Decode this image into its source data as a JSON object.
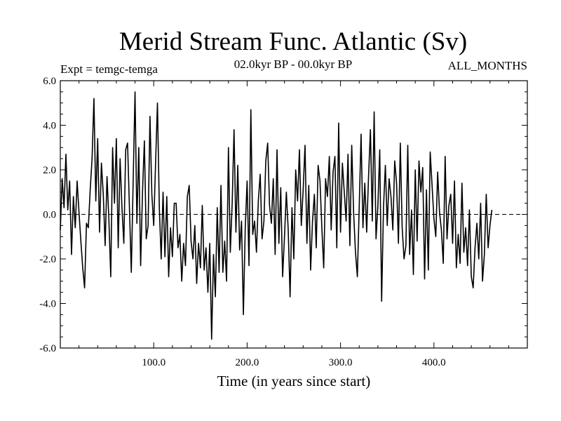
{
  "chart_data": {
    "type": "line",
    "title": "Merid Stream Func. Atlantic (Sv)",
    "subtitle": "02.0kyr BP - 00.0kyr BP",
    "experiment": "Expt = temgc-temga",
    "months": "ALL_MONTHS",
    "xlabel": "Time (in years since start)",
    "ylabel": "",
    "xlim": [
      0,
      500
    ],
    "ylim": [
      -6,
      6
    ],
    "xticks": [
      100,
      200,
      300,
      400
    ],
    "xtick_labels": [
      "100.0",
      "200.0",
      "300.0",
      "400.0"
    ],
    "yticks": [
      -6,
      -4,
      -2,
      0,
      2,
      4,
      6
    ],
    "ytick_labels": [
      "-6.0",
      "-4.0",
      "-2.0",
      "0.0",
      "2.0",
      "4.0",
      "6.0"
    ],
    "zero_line": "dashed",
    "series": [
      {
        "name": "Merid Stream Func. Atlantic",
        "color": "#000000",
        "x_start": 0,
        "x_step": 2,
        "values": [
          -0.7,
          1.6,
          0.3,
          2.7,
          0.2,
          1.5,
          -1.8,
          0.8,
          -0.6,
          1.5,
          0.1,
          -1.2,
          -2.4,
          -3.3,
          -0.4,
          -0.6,
          1.1,
          2.5,
          5.2,
          0.6,
          3.4,
          -0.8,
          2.3,
          0.9,
          -1.4,
          1.7,
          -0.2,
          -2.8,
          3.0,
          0.5,
          3.4,
          -1.5,
          2.5,
          0.3,
          -1.3,
          2.9,
          3.2,
          0.3,
          -2.6,
          1.5,
          5.5,
          -0.4,
          3.0,
          -2.3,
          1.0,
          3.3,
          -1.1,
          -0.5,
          4.4,
          0.9,
          -0.5,
          2.3,
          5.0,
          0.3,
          -2.0,
          1.0,
          -1.9,
          0.8,
          -2.8,
          -0.6,
          -1.9,
          0.5,
          0.5,
          -1.5,
          -0.9,
          -3.0,
          -1.3,
          -2.3,
          0.8,
          1.3,
          -1.2,
          -2.0,
          -0.5,
          -3.1,
          -1.3,
          -2.4,
          0.4,
          -2.5,
          -1.5,
          -3.5,
          -1.3,
          -5.6,
          -1.8,
          -3.7,
          0.3,
          -2.6,
          1.3,
          -2.6,
          -1.2,
          -3.0,
          3.0,
          -1.7,
          0.5,
          3.8,
          -0.8,
          2.2,
          -1.6,
          -0.3,
          -4.5,
          -0.6,
          1.5,
          -2.3,
          4.7,
          -0.9,
          -0.3,
          -1.7,
          0.6,
          1.8,
          -1.1,
          -0.3,
          2.4,
          3.2,
          0.4,
          -0.4,
          1.6,
          -1.8,
          2.9,
          -1.3,
          1.2,
          -2.8,
          -1.0,
          1.0,
          -0.7,
          -3.7,
          0.3,
          -2.0,
          2.0,
          0.6,
          2.9,
          -0.5,
          1.1,
          3.1,
          -1.3,
          1.3,
          -2.5,
          -0.3,
          0.9,
          -1.5,
          2.2,
          1.5,
          -0.6,
          -2.4,
          1.6,
          0.8,
          2.6,
          -0.7,
          1.9,
          2.6,
          -1.5,
          4.1,
          -0.8,
          2.3,
          1.0,
          -0.3,
          2.7,
          -1.4,
          3.1,
          0.1,
          -1.7,
          -2.8,
          0.3,
          3.6,
          -0.6,
          1.4,
          -0.8,
          1.7,
          3.8,
          -0.3,
          4.6,
          -1.1,
          0.4,
          2.9,
          -3.9,
          0.3,
          2.2,
          -0.5,
          1.6,
          0.8,
          -0.7,
          2.4,
          1.4,
          -1.3,
          3.2,
          -0.6,
          -2.0,
          -1.4,
          3.1,
          -1.8,
          0.2,
          -2.7,
          2.0,
          -1.2,
          2.4,
          1.0,
          2.1,
          -2.9,
          1.1,
          -2.5,
          2.8,
          1.3,
          -0.2,
          -1.0,
          1.9,
          0.1,
          -0.7,
          -2.2,
          2.6,
          -1.1,
          0.4,
          0.9,
          -1.3,
          1.5,
          -2.4,
          -0.9,
          -2.2,
          1.4,
          -1.7,
          -0.6,
          -2.3,
          0.2,
          -2.8,
          -3.3,
          -1.5,
          -0.4,
          -2.0,
          0.5,
          -3.0,
          -1.8,
          0.9,
          -1.5,
          -0.5,
          0.2
        ]
      }
    ]
  }
}
